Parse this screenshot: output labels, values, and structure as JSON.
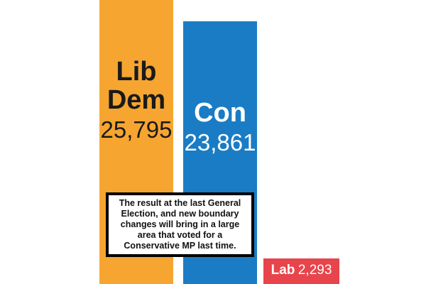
{
  "chart_data": {
    "type": "bar",
    "categories": [
      "Lib Dem",
      "Con",
      "Lab"
    ],
    "values": [
      25795,
      23861,
      2293
    ],
    "value_labels": [
      "25,795",
      "23,861",
      "2,293"
    ],
    "colors": [
      "#f6a531",
      "#1a7cc4",
      "#e8444c"
    ],
    "title": "",
    "xlabel": "",
    "ylabel": "",
    "grid": false,
    "legend": "none"
  },
  "labels": {
    "libdem_line1": "Lib",
    "libdem_line2": "Dem",
    "libdem_value": "25,795",
    "con_name": "Con",
    "con_value": "23,861",
    "lab_name": "Lab",
    "lab_value": "2,293"
  },
  "annotation": {
    "text": "The result at the last General Election, and new boundary changes will bring in a large area that voted for a Conservative MP last time."
  }
}
